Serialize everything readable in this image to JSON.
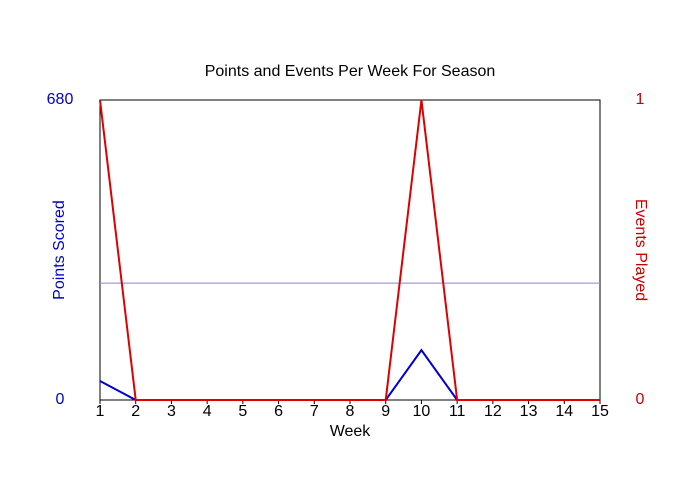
{
  "chart_data": {
    "type": "line",
    "title": "Points and Events Per Week For Season",
    "x_label": "Week",
    "y_label": "Points Scored",
    "y2_label": "Events Played",
    "y_color": "#0000cc",
    "y2_color": "#cc0000",
    "x": [
      1,
      2,
      3,
      4,
      5,
      6,
      7,
      8,
      9,
      10,
      11,
      12,
      13,
      14,
      15
    ],
    "xlim": [
      1,
      15
    ],
    "xticks": [
      1,
      2,
      3,
      4,
      5,
      6,
      7,
      8,
      9,
      10,
      11,
      12,
      13,
      14,
      15
    ],
    "ylim": [
      0,
      680
    ],
    "yticks": [
      0,
      680
    ],
    "y2lim": [
      0,
      1
    ],
    "y2ticks": [
      0,
      1
    ],
    "series": [
      {
        "color": "#0000cc",
        "values": [
          43,
          0,
          0,
          0,
          0,
          0,
          0,
          0,
          0,
          113,
          0,
          0,
          0,
          0,
          0
        ]
      },
      {
        "color": "#dd0000",
        "axis": "y2",
        "values": [
          1,
          0,
          0,
          0,
          0,
          0,
          0,
          0,
          0,
          1,
          0,
          0,
          0,
          0,
          0
        ]
      }
    ],
    "hlines": [
      {
        "value": 265,
        "color": "#8888cc"
      }
    ]
  }
}
